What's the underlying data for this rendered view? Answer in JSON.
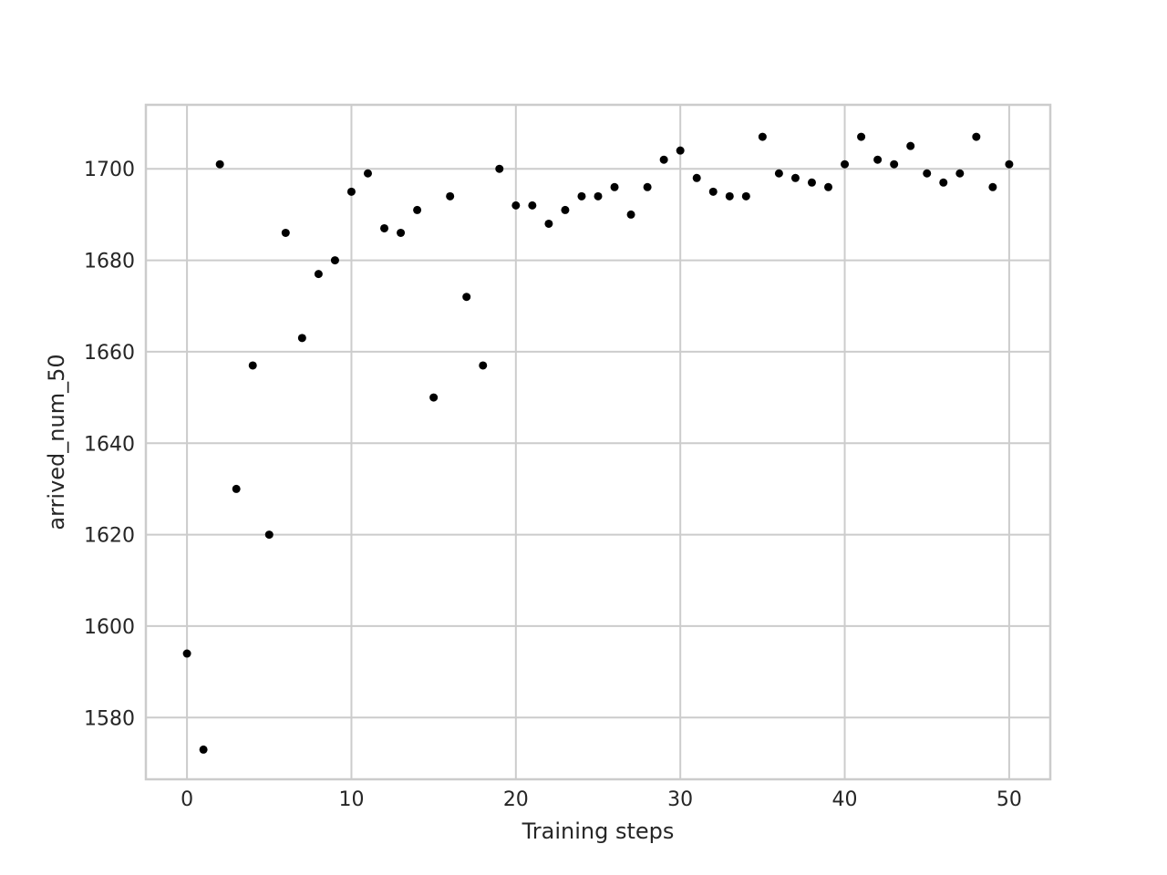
{
  "chart_data": {
    "type": "scatter",
    "title": "",
    "xlabel": "Training steps",
    "ylabel": "arrived_num_50",
    "xlim": [
      -2.5,
      52.5
    ],
    "ylim": [
      1566.5,
      1714.0
    ],
    "x_ticks": [
      0,
      10,
      20,
      30,
      40,
      50
    ],
    "y_ticks": [
      1580,
      1600,
      1620,
      1640,
      1660,
      1680,
      1700
    ],
    "grid": true,
    "marker_color": "#000000",
    "grid_color": "#cccccc",
    "series": [
      {
        "x": [
          0,
          1,
          2,
          3,
          4,
          5,
          6,
          7,
          8,
          9,
          10,
          11,
          12,
          13,
          14,
          15,
          16,
          17,
          18,
          19,
          20,
          21,
          22,
          23,
          24,
          25,
          26,
          27,
          28,
          29,
          30,
          31,
          32,
          33,
          34,
          35,
          36,
          37,
          38,
          39,
          40,
          41,
          42,
          43,
          44,
          45,
          46,
          47,
          48,
          49,
          50
        ],
        "y": [
          1594,
          1573,
          1701,
          1630,
          1657,
          1620,
          1686,
          1663,
          1677,
          1680,
          1695,
          1699,
          1687,
          1686,
          1691,
          1650,
          1694,
          1672,
          1657,
          1700,
          1692,
          1692,
          1688,
          1691,
          1694,
          1694,
          1696,
          1690,
          1696,
          1702,
          1704,
          1698,
          1695,
          1694,
          1694,
          1707,
          1699,
          1698,
          1697,
          1696,
          1701,
          1707,
          1702,
          1701,
          1705,
          1699,
          1697,
          1699,
          1707,
          1696,
          1701
        ]
      }
    ]
  }
}
